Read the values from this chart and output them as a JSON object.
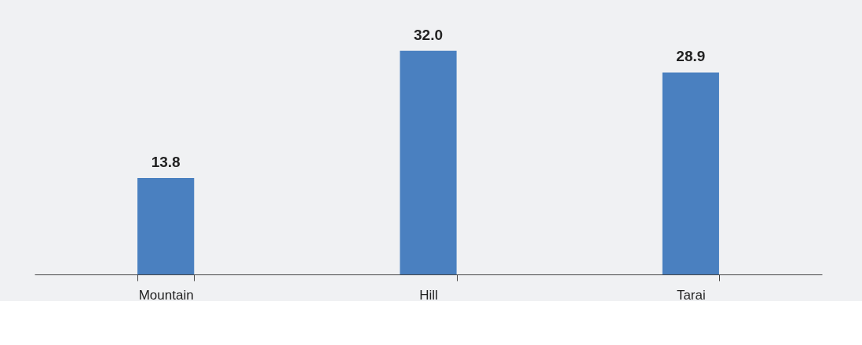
{
  "chart_data": {
    "type": "bar",
    "categories": [
      "Mountain",
      "Hill",
      "Tarai"
    ],
    "values": [
      13.8,
      32.0,
      28.9
    ],
    "value_labels": [
      "13.8",
      "32.0",
      "28.9"
    ],
    "color": "#4a80c0",
    "grid": false
  }
}
